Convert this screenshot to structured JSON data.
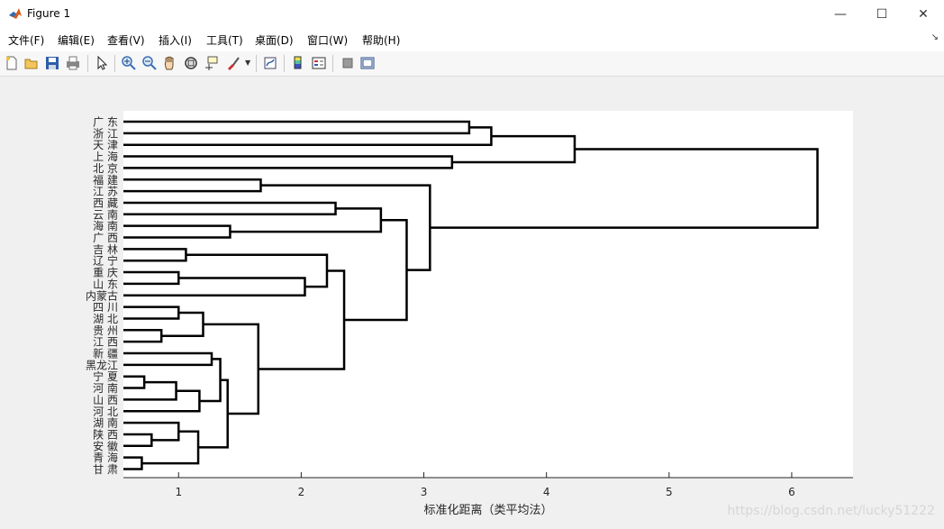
{
  "window": {
    "title": "Figure 1",
    "controls": {
      "minimize": "—",
      "maximize": "☐",
      "close": "✕"
    }
  },
  "menu": {
    "items": [
      "文件(F)",
      "编辑(E)",
      "查看(V)",
      "插入(I)",
      "工具(T)",
      "桌面(D)",
      "窗口(W)",
      "帮助(H)"
    ],
    "corner_glyph": "↘"
  },
  "toolbar": {
    "icons": [
      "new-figure-icon",
      "open-file-icon",
      "save-icon",
      "print-icon",
      "select-arrow-icon",
      "zoom-in-icon",
      "zoom-out-icon",
      "pan-hand-icon",
      "rotate-3d-icon",
      "data-cursor-icon",
      "brush-icon",
      "link-plot-icon",
      "colorbar-icon",
      "legend-icon",
      "hide-plot-tools-icon",
      "show-plot-tools-icon"
    ]
  },
  "chart_data": {
    "type": "dendrogram",
    "xlabel": "标准化距离（类平均法）",
    "ylabel": "",
    "title": "",
    "xlim": [
      0.55,
      6.5
    ],
    "xticks": [
      1,
      2,
      3,
      4,
      5,
      6
    ],
    "grid": false,
    "leaves": [
      "广 东",
      "浙 江",
      "天 津",
      "上 海",
      "北 京",
      "福 建",
      "江 苏",
      "西 藏",
      "云 南",
      "海 南",
      "广 西",
      "吉 林",
      "辽 宁",
      "重 庆",
      "山 东",
      "内蒙古",
      "四 川",
      "湖 北",
      "贵 州",
      "江 西",
      "新 疆",
      "黑龙江",
      "宁 夏",
      "河 南",
      "山 西",
      "河 北",
      "湖 南",
      "陕 西",
      "安 徽",
      "青 海",
      "甘 肃"
    ],
    "merges": [
      {
        "left": "L0",
        "right": "L1",
        "height": 3.37
      },
      {
        "left": "N0",
        "right": "L2",
        "height": 3.55
      },
      {
        "left": "L3",
        "right": "L4",
        "height": 3.23
      },
      {
        "left": "N1",
        "right": "N2",
        "height": 4.23
      },
      {
        "left": "L8",
        "right": "L7",
        "height": 2.28
      },
      {
        "left": "L9",
        "right": "L10",
        "height": 1.42
      },
      {
        "left": "N4",
        "right": "N5",
        "height": 2.65
      },
      {
        "left": "L11",
        "right": "L12",
        "height": 1.06
      },
      {
        "left": "L13",
        "right": "L14",
        "height": 1.0
      },
      {
        "left": "N8",
        "right": "L15",
        "height": 2.03
      },
      {
        "left": "N7",
        "right": "N9",
        "height": 2.21
      },
      {
        "left": "L16",
        "right": "L17",
        "height": 1.0
      },
      {
        "left": "L18",
        "right": "L19",
        "height": 0.86
      },
      {
        "left": "N11",
        "right": "N12",
        "height": 1.2
      },
      {
        "left": "L20",
        "right": "L21",
        "height": 1.27
      },
      {
        "left": "L22",
        "right": "L23",
        "height": 0.72
      },
      {
        "left": "N15",
        "right": "L24",
        "height": 0.98
      },
      {
        "left": "N16",
        "right": "L25",
        "height": 1.17
      },
      {
        "left": "N14",
        "right": "N17",
        "height": 1.34
      },
      {
        "left": "L27",
        "right": "L28",
        "height": 0.78
      },
      {
        "left": "L26",
        "right": "N19",
        "height": 1.0
      },
      {
        "left": "L29",
        "right": "L30",
        "height": 0.7
      },
      {
        "left": "N20",
        "right": "N21",
        "height": 1.16
      },
      {
        "left": "N18",
        "right": "N22",
        "height": 1.4
      },
      {
        "left": "N13",
        "right": "N23",
        "height": 1.65
      },
      {
        "left": "N10",
        "right": "N24",
        "height": 2.35
      },
      {
        "left": "N6",
        "right": "N25",
        "height": 2.86
      },
      {
        "left": "L5",
        "right": "L6",
        "height": 1.67
      },
      {
        "left": "N27",
        "right": "N26",
        "height": 3.05
      },
      {
        "left": "N3",
        "right": "N28",
        "height": 6.21
      }
    ]
  },
  "watermark": "https://blog.csdn.net/lucky51222"
}
